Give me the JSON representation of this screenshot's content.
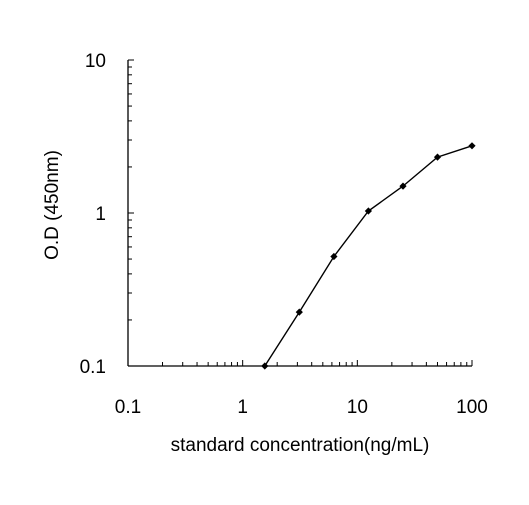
{
  "chart_data": {
    "type": "line",
    "title": "",
    "xlabel": "standard concentration(ng/mL)",
    "ylabel": "O.D (450nm)",
    "x_scale": "log",
    "y_scale": "log",
    "xlim": [
      0.1,
      100
    ],
    "ylim": [
      0.1,
      10
    ],
    "x_ticks": [
      "0.1",
      "1",
      "10",
      "100"
    ],
    "y_ticks": [
      "0.1",
      "1",
      "10"
    ],
    "grid": false,
    "legend": "none",
    "series": [
      {
        "x": [
          1.56,
          3.12,
          6.25,
          12.5,
          25,
          50,
          100
        ],
        "y": [
          0.1,
          0.225,
          0.52,
          1.03,
          1.5,
          2.32,
          2.75
        ],
        "color": "#000000",
        "marker": "diamond"
      }
    ]
  }
}
